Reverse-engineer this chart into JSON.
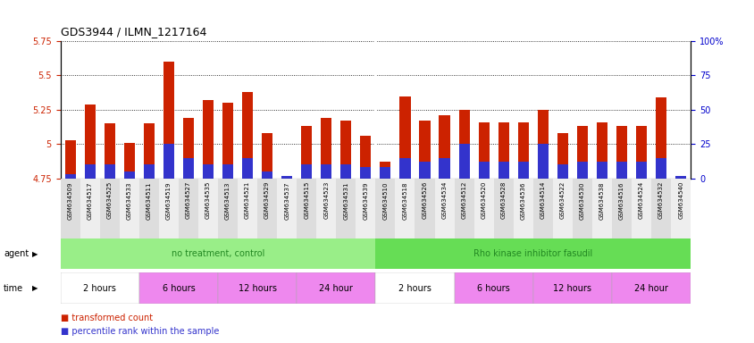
{
  "title": "GDS3944 / ILMN_1217164",
  "samples": [
    "GSM634509",
    "GSM634517",
    "GSM634525",
    "GSM634533",
    "GSM634511",
    "GSM634519",
    "GSM634527",
    "GSM634535",
    "GSM634513",
    "GSM634521",
    "GSM634529",
    "GSM634537",
    "GSM634515",
    "GSM634523",
    "GSM634531",
    "GSM634539",
    "GSM634510",
    "GSM634518",
    "GSM634526",
    "GSM634534",
    "GSM634512",
    "GSM634520",
    "GSM634528",
    "GSM634536",
    "GSM634514",
    "GSM634522",
    "GSM634530",
    "GSM634538",
    "GSM634516",
    "GSM634524",
    "GSM634532",
    "GSM634540"
  ],
  "transformed_count": [
    5.03,
    5.29,
    5.15,
    5.01,
    5.15,
    5.6,
    5.19,
    5.32,
    5.3,
    5.38,
    5.08,
    4.76,
    5.13,
    5.19,
    5.17,
    5.06,
    4.87,
    5.35,
    5.17,
    5.21,
    5.25,
    5.16,
    5.16,
    5.16,
    5.25,
    5.08,
    5.13,
    5.16,
    5.13,
    5.13,
    5.34,
    4.75
  ],
  "percentile_rank": [
    3,
    10,
    10,
    5,
    10,
    25,
    15,
    10,
    10,
    15,
    5,
    2,
    10,
    10,
    10,
    8,
    8,
    15,
    12,
    15,
    25,
    12,
    12,
    12,
    25,
    10,
    12,
    12,
    12,
    12,
    15,
    2
  ],
  "ymin": 4.75,
  "ymax": 5.75,
  "yticks": [
    4.75,
    5.0,
    5.25,
    5.5,
    5.75
  ],
  "ytick_labels": [
    "4.75",
    "5",
    "5.25",
    "5.5",
    "5.75"
  ],
  "y2min": 0,
  "y2max": 100,
  "y2ticks": [
    0,
    25,
    50,
    75,
    100
  ],
  "y2tick_labels": [
    "0",
    "25",
    "50",
    "75",
    "100%"
  ],
  "bar_color_red": "#cc2200",
  "bar_color_blue": "#3333cc",
  "bar_width": 0.55,
  "agent_groups": [
    {
      "label": "no treatment, control",
      "start": 0,
      "end": 16,
      "color": "#99ee88"
    },
    {
      "label": "Rho kinase inhibitor fasudil",
      "start": 16,
      "end": 32,
      "color": "#66dd55"
    }
  ],
  "time_groups": [
    {
      "label": "2 hours",
      "start": 0,
      "end": 4,
      "color": "#ffffff"
    },
    {
      "label": "6 hours",
      "start": 4,
      "end": 8,
      "color": "#ee88ee"
    },
    {
      "label": "12 hours",
      "start": 8,
      "end": 12,
      "color": "#ee88ee"
    },
    {
      "label": "24 hour",
      "start": 12,
      "end": 16,
      "color": "#ee88ee"
    },
    {
      "label": "2 hours",
      "start": 16,
      "end": 20,
      "color": "#ffffff"
    },
    {
      "label": "6 hours",
      "start": 20,
      "end": 24,
      "color": "#ee88ee"
    },
    {
      "label": "12 hours",
      "start": 24,
      "end": 28,
      "color": "#ee88ee"
    },
    {
      "label": "24 hour",
      "start": 28,
      "end": 32,
      "color": "#ee88ee"
    }
  ],
  "title_color": "#000000",
  "axis_color_left": "#cc2200",
  "axis_color_right": "#0000cc",
  "background_color": "#ffffff",
  "plot_bg_color": "#ffffff",
  "tick_bg_colors": [
    "#dddddd",
    "#eeeeee"
  ]
}
